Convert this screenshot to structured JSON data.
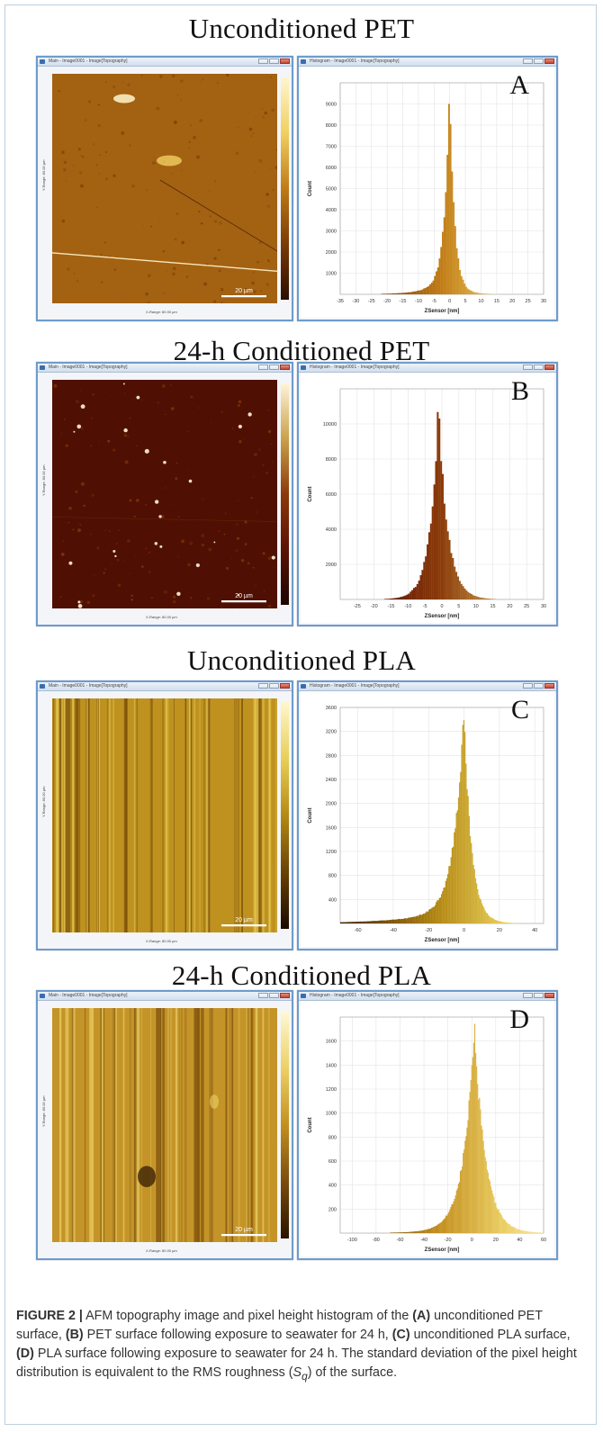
{
  "figure": {
    "caption": {
      "label": "FIGURE 2 |",
      "parts": [
        {
          "t": " AFM topography image and pixel height histogram of the "
        },
        {
          "t": "(A)",
          "b": true
        },
        {
          "t": " unconditioned PET surface, "
        },
        {
          "t": "(B)",
          "b": true
        },
        {
          "t": " PET surface following exposure to seawater for 24 h, "
        },
        {
          "t": "(C)",
          "b": true
        },
        {
          "t": " unconditioned PLA surface, "
        },
        {
          "t": "(D)",
          "b": true
        },
        {
          "t": " PLA surface following exposure to seawater for 24 h. The standard deviation of the pixel height distribution is equivalent to the RMS roughness ("
        },
        {
          "t": "S",
          "i": true
        },
        {
          "t": "q",
          "sub": true
        },
        {
          "t": ") of the surface."
        }
      ]
    }
  },
  "chart_data": [
    {
      "type": "bar",
      "title": "Unconditioned PET",
      "panel_letter": "A",
      "xlabel": "ZSensor [nm]",
      "ylabel": "Count",
      "xlim": [
        -35,
        30
      ],
      "ylim": [
        0,
        10000
      ],
      "x_ticks": [
        -35,
        -30,
        -25,
        -20,
        -15,
        -10,
        -5,
        0,
        5,
        10,
        15,
        20,
        25,
        30
      ],
      "y_ticks": [
        1000,
        2000,
        3000,
        4000,
        5000,
        6000,
        7000,
        8000,
        9000
      ],
      "x_tick_labels": [
        "-35",
        "-30",
        "-25",
        "-20",
        "-15",
        "-10",
        "-5",
        "0",
        "5",
        "10",
        "15",
        "20",
        "25",
        "30"
      ],
      "y_tick_labels": [
        "1000",
        "2000",
        "3000",
        "4000",
        "5000",
        "6000",
        "7000",
        "8000",
        "9000"
      ],
      "bin_width": 0.5,
      "distribution": {
        "center": 0,
        "peak": 9200,
        "width_left": 1.6,
        "width_right": 1.5,
        "tail_left": 0.09,
        "tail_left_scale": 6,
        "tail_right": 0.03,
        "tail_right_scale": 5
      },
      "colormap": [
        "#2b0f00",
        "#7a3a06",
        "#c07b16",
        "#f0d060",
        "#fff6cf"
      ],
      "image": {
        "window_title": "Main - Image0001 - Image[Topography]",
        "x_range": "X-Range: 80.00 µm",
        "y_range": "Y-Range: 80.00 µm",
        "scale_bar": "20 µm",
        "base": "#a36112",
        "hist_window_title": "Histogram - Image0001 - Image[Topography]"
      }
    },
    {
      "type": "bar",
      "title": "24-h Conditioned PET",
      "panel_letter": "B",
      "xlabel": "ZSensor [nm]",
      "ylabel": "Count",
      "xlim": [
        -30,
        30
      ],
      "ylim": [
        0,
        12000
      ],
      "x_ticks": [
        -25,
        -20,
        -15,
        -10,
        -5,
        0,
        5,
        10,
        15,
        20,
        25,
        30
      ],
      "y_ticks": [
        2000,
        4000,
        6000,
        8000,
        10000
      ],
      "x_tick_labels": [
        "-25",
        "-20",
        "-15",
        "-10",
        "-5",
        "0",
        "5",
        "10",
        "15",
        "20",
        "25",
        "30"
      ],
      "y_tick_labels": [
        "2000",
        "4000",
        "6000",
        "8000",
        "10000"
      ],
      "bin_width": 0.5,
      "distribution": {
        "center": -1,
        "peak": 10600,
        "width_left": 2.4,
        "width_right": 2.6,
        "tail_left": 0.06,
        "tail_left_scale": 4,
        "tail_right": 0.05,
        "tail_right_scale": 4
      },
      "colormap": [
        "#1d0400",
        "#5a1204",
        "#8b3a0a",
        "#caa14b",
        "#fff4d8"
      ],
      "image": {
        "window_title": "Main - Image0001 - Image[Topography]",
        "x_range": "X-Range: 80.00 µm",
        "y_range": "Y-Range: 80.00 µm",
        "scale_bar": "20 µm",
        "base": "#4f1003",
        "hist_window_title": "Histogram - Image0001 - Image[Topography]"
      }
    },
    {
      "type": "bar",
      "title": "Unconditioned PLA",
      "panel_letter": "C",
      "xlabel": "ZSensor [nm]",
      "ylabel": "Count",
      "xlim": [
        -70,
        45
      ],
      "ylim": [
        0,
        3600
      ],
      "x_ticks": [
        -60,
        -40,
        -20,
        0,
        20,
        40
      ],
      "y_ticks": [
        400,
        800,
        1200,
        1600,
        2000,
        2400,
        2800,
        3200,
        3600
      ],
      "x_tick_labels": [
        "-60",
        "-40",
        "-20",
        "0",
        "20",
        "40"
      ],
      "y_tick_labels": [
        "400",
        "800",
        "1200",
        "1600",
        "2000",
        "2400",
        "2800",
        "3200",
        "3600"
      ],
      "bin_width": 0.6,
      "distribution": {
        "center": 0,
        "peak": 3380,
        "width_left": 5.5,
        "width_right": 4.2,
        "tail_left": 0.075,
        "tail_left_scale": 28,
        "tail_right": 0.02,
        "tail_right_scale": 10
      },
      "colormap": [
        "#1a0900",
        "#6a4205",
        "#b58a14",
        "#e8cf58",
        "#fff7cc"
      ],
      "image": {
        "window_title": "Main - Image0001 - Image[Topography]",
        "x_range": "X-Range: 80.00 µm",
        "y_range": "Y-Range: 80.00 µm",
        "scale_bar": "20 µm",
        "base": "#bf9220",
        "hist_window_title": "Histogram - Image0001 - Image[Topography]"
      }
    },
    {
      "type": "bar",
      "title": "24-h Conditioned PLA",
      "panel_letter": "D",
      "xlabel": "ZSensor [nm]",
      "ylabel": "Count",
      "xlim": [
        -110,
        60
      ],
      "ylim": [
        0,
        1800
      ],
      "x_ticks": [
        -100,
        -80,
        -60,
        -40,
        -20,
        0,
        20,
        40,
        60
      ],
      "y_ticks": [
        200,
        400,
        600,
        800,
        1000,
        1200,
        1400,
        1600
      ],
      "x_tick_labels": [
        "-100",
        "-80",
        "-60",
        "-40",
        "-20",
        "0",
        "20",
        "40",
        "60"
      ],
      "y_tick_labels": [
        "200",
        "400",
        "600",
        "800",
        "1000",
        "1200",
        "1400",
        "1600"
      ],
      "bin_width": 0.8,
      "distribution": {
        "center": 2,
        "peak": 1660,
        "width_left": 9,
        "width_right": 9,
        "tail_left": 0.03,
        "tail_left_scale": 25,
        "tail_right": 0.04,
        "tail_right_scale": 14
      },
      "colormap": [
        "#2a1300",
        "#7a4d0c",
        "#c3901e",
        "#ecd065",
        "#fff8d4"
      ],
      "image": {
        "window_title": "Main - Image0001 - Image[Topography]",
        "x_range": "X-Range: 80.00 µm",
        "y_range": "Y-Range: 80.00 µm",
        "scale_bar": "20 µm",
        "base": "#c49428",
        "hist_window_title": "Histogram - Image0001 - Image[Topography]"
      }
    }
  ]
}
